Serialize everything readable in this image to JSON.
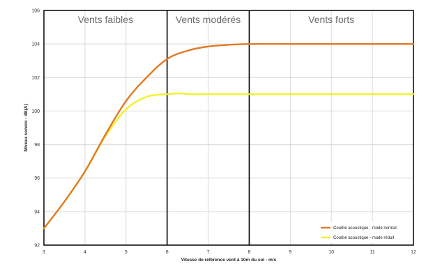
{
  "chart_data": {
    "type": "line",
    "title": "",
    "xlabel": "Vitesse de référence vent à 10m du sol - m/s",
    "ylabel": "Niveau sonore - dB(A)",
    "xlim": [
      3,
      12
    ],
    "ylim": [
      92,
      106
    ],
    "x_ticks": [
      "3",
      "4",
      "5",
      "6",
      "7",
      "8",
      "9",
      "10",
      "11",
      "12"
    ],
    "y_ticks": [
      "92",
      "94",
      "96",
      "98",
      "100",
      "102",
      "104",
      "106"
    ],
    "grid": true,
    "legend_position": "bottom-right",
    "zones": [
      {
        "label": "Vents faibles",
        "from": 3,
        "to": 6
      },
      {
        "label": "Vents modérés",
        "from": 6,
        "to": 8
      },
      {
        "label": "Vents forts",
        "from": 8,
        "to": 12
      }
    ],
    "zone_boundaries": [
      6,
      8
    ],
    "series": [
      {
        "name": "Courbe acoustique - mode normal",
        "color": "#e07b24",
        "points": [
          [
            3,
            93.0
          ],
          [
            3.5,
            94.6
          ],
          [
            4,
            96.4
          ],
          [
            4.5,
            98.6
          ],
          [
            5,
            100.6
          ],
          [
            5.5,
            102.0
          ],
          [
            6,
            103.1
          ],
          [
            6.5,
            103.6
          ],
          [
            7,
            103.85
          ],
          [
            7.5,
            103.95
          ],
          [
            8,
            104.0
          ],
          [
            9,
            104.0
          ],
          [
            10,
            104.0
          ],
          [
            11,
            104.0
          ],
          [
            12,
            104.0
          ]
        ]
      },
      {
        "name": "Courbe acoustique - mode réduit",
        "color": "#f2f02a",
        "points": [
          [
            3,
            93.0
          ],
          [
            3.5,
            94.6
          ],
          [
            4,
            96.4
          ],
          [
            4.5,
            98.5
          ],
          [
            5,
            100.1
          ],
          [
            5.5,
            100.85
          ],
          [
            6,
            101.0
          ],
          [
            6.3,
            101.05
          ],
          [
            6.6,
            101.0
          ],
          [
            7,
            101.0
          ],
          [
            8,
            101.0
          ],
          [
            9,
            101.0
          ],
          [
            10,
            101.0
          ],
          [
            11,
            101.0
          ],
          [
            12,
            101.0
          ]
        ]
      }
    ]
  }
}
